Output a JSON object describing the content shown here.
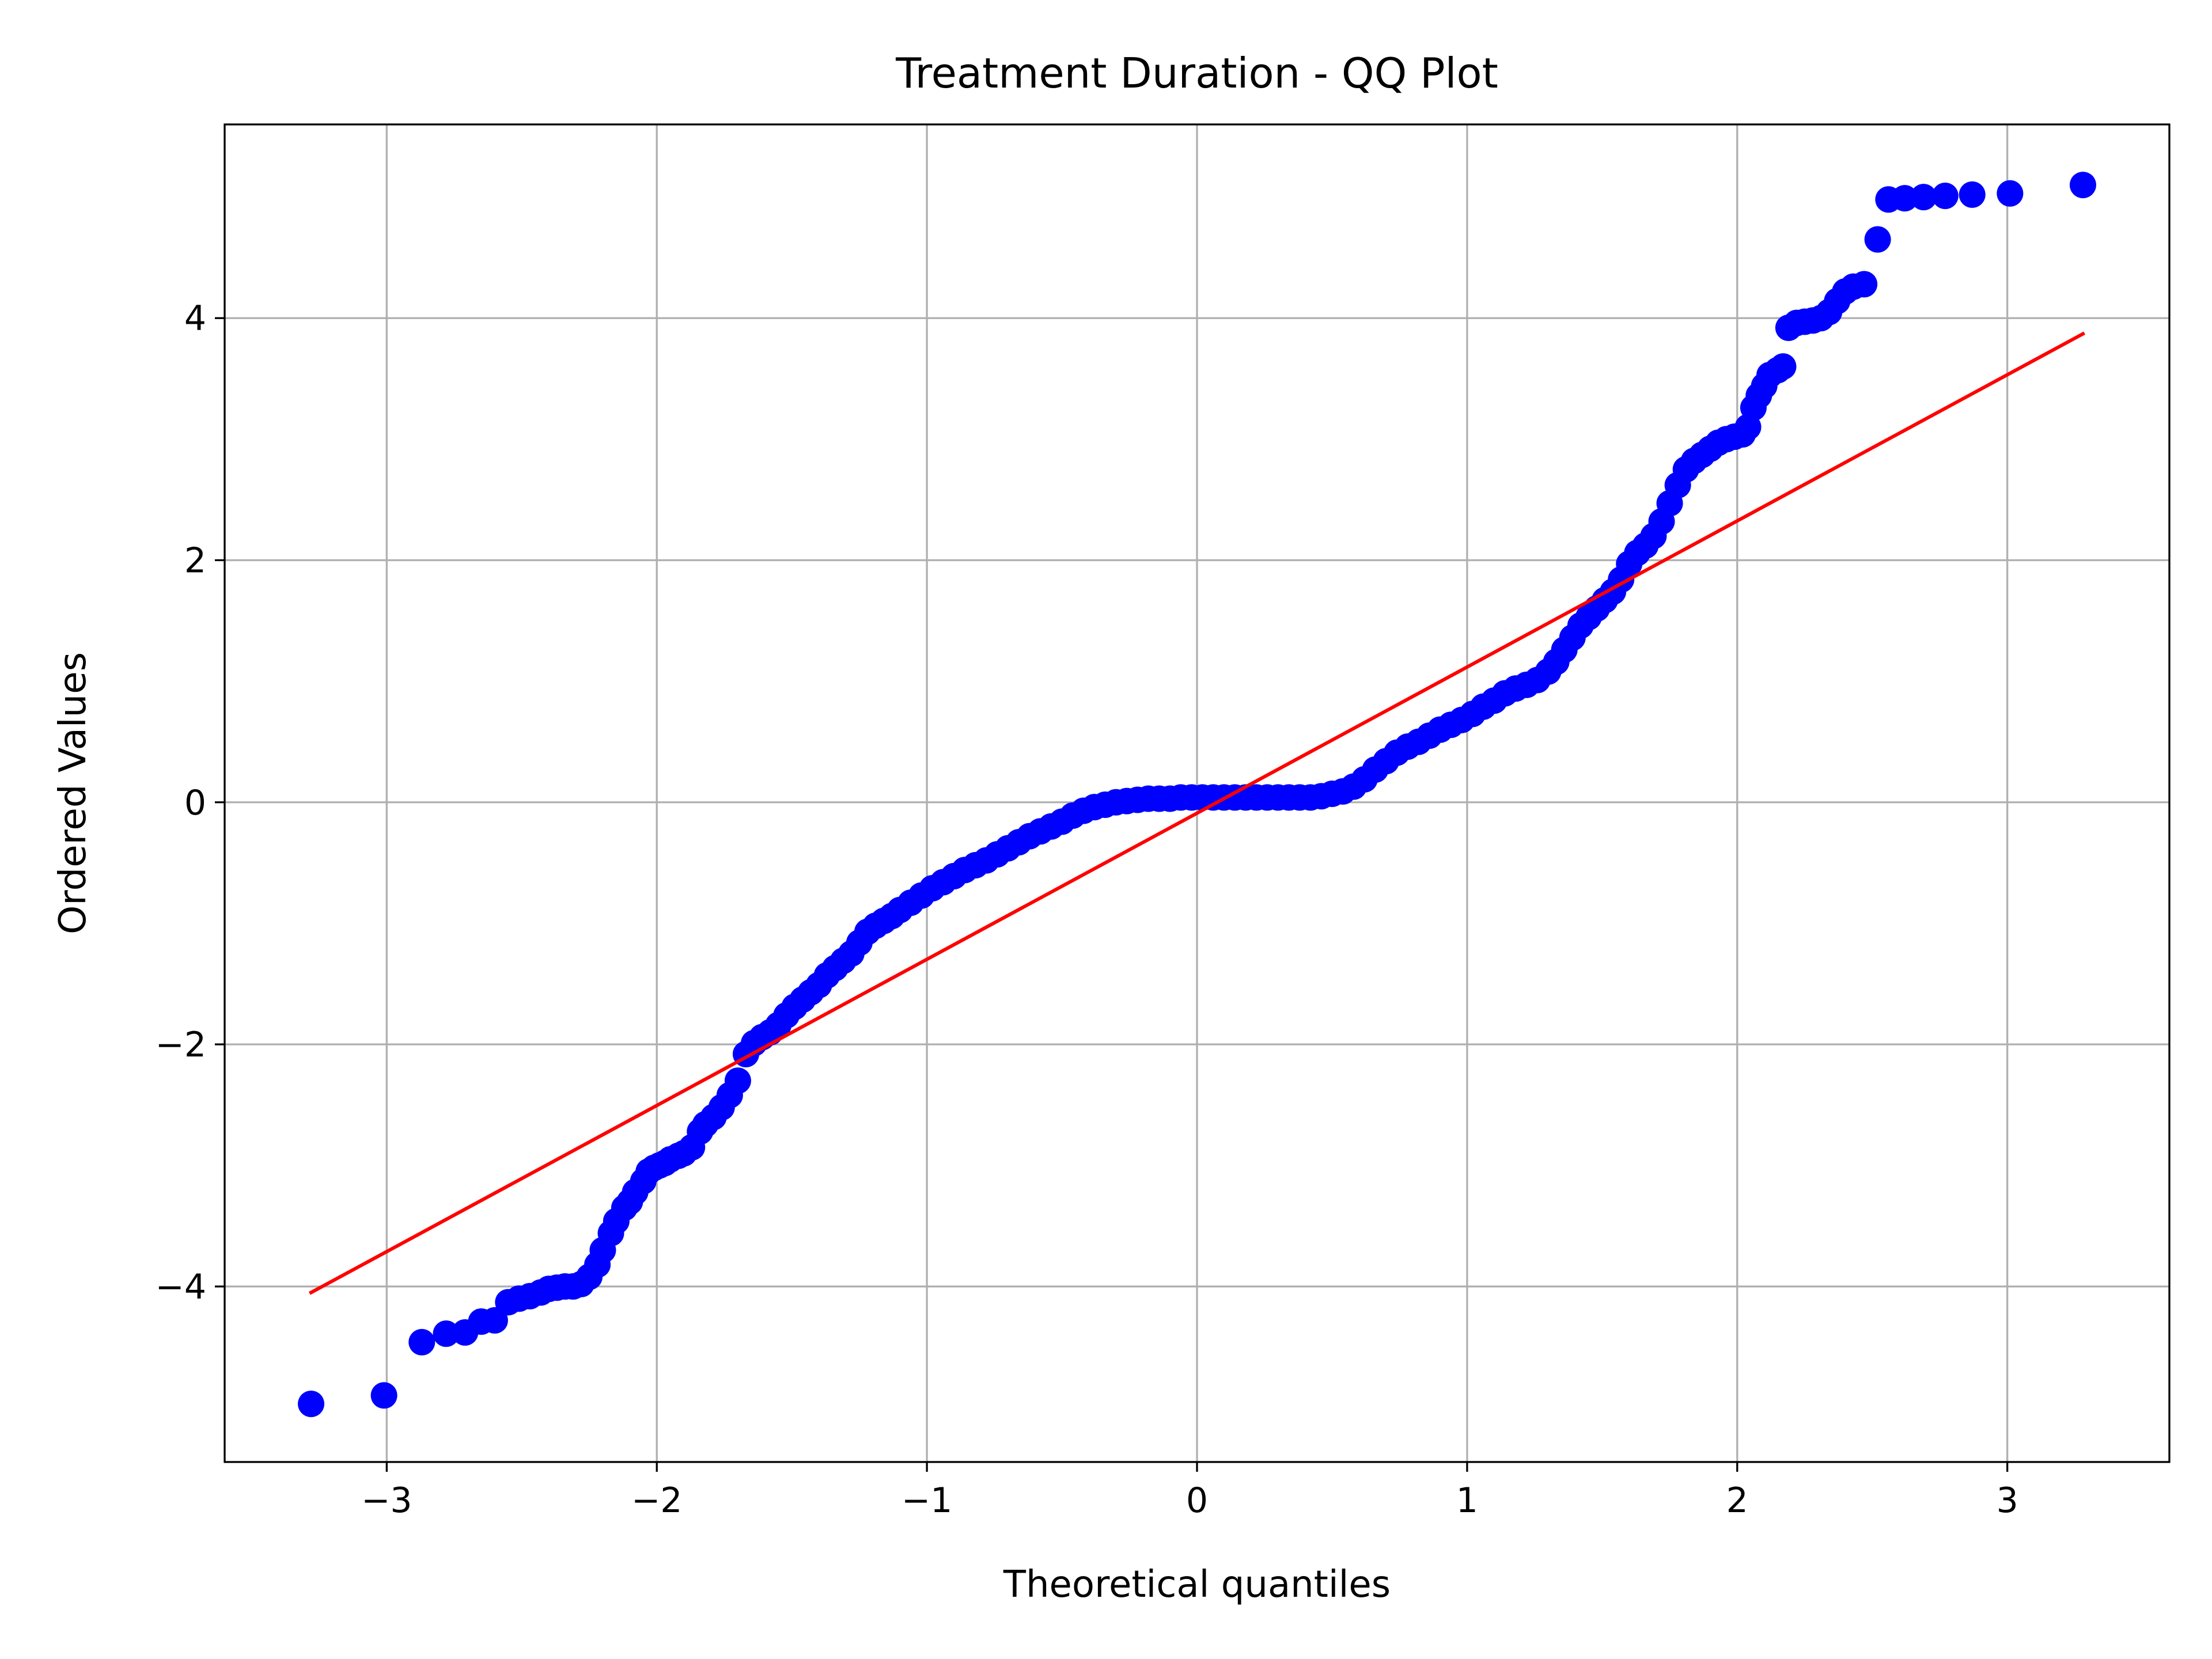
{
  "chart_data": {
    "type": "scatter",
    "title": "Treatment Duration - QQ Plot",
    "xlabel": "Theoretical quantiles",
    "ylabel": "Ordered Values",
    "xlim": [
      -3.6,
      3.6
    ],
    "ylim": [
      -5.45,
      5.6
    ],
    "xticks": [
      -3,
      -2,
      -1,
      0,
      1,
      2,
      3
    ],
    "xtick_labels": [
      "−3",
      "−2",
      "−1",
      "0",
      "1",
      "2",
      "3"
    ],
    "yticks": [
      -4,
      -2,
      0,
      2,
      4
    ],
    "ytick_labels": [
      "−4",
      "−2",
      "0",
      "2",
      "4"
    ],
    "grid": true,
    "series": [
      {
        "kind": "points",
        "color": "#0000ff",
        "x": [
          -3.28,
          -3.01,
          -2.87,
          -2.78,
          -2.71,
          -2.65,
          -2.6,
          -2.55,
          -2.51,
          -2.47,
          -2.43,
          -2.4,
          -2.37,
          -2.34,
          -2.31,
          -2.28,
          -2.25,
          -2.22,
          -2.2,
          -2.17,
          -2.15,
          -2.12,
          -2.1,
          -2.08,
          -2.05,
          -2.03,
          -2.01,
          -1.99,
          -1.97,
          -1.95,
          -1.92,
          -1.9,
          -1.87,
          -1.84,
          -1.82,
          -1.79,
          -1.76,
          -1.73,
          -1.7,
          -1.67,
          -1.64,
          -1.61,
          -1.58,
          -1.55,
          -1.52,
          -1.49,
          -1.46,
          -1.43,
          -1.4,
          -1.37,
          -1.34,
          -1.31,
          -1.28,
          -1.25,
          -1.22,
          -1.19,
          -1.16,
          -1.13,
          -1.1,
          -1.06,
          -1.02,
          -0.98,
          -0.94,
          -0.9,
          -0.86,
          -0.82,
          -0.78,
          -0.74,
          -0.7,
          -0.66,
          -0.62,
          -0.58,
          -0.54,
          -0.5,
          -0.46,
          -0.42,
          -0.38,
          -0.34,
          -0.3,
          -0.26,
          -0.22,
          -0.18,
          -0.14,
          -0.1,
          -0.06,
          -0.02,
          0.02,
          0.06,
          0.1,
          0.14,
          0.18,
          0.22,
          0.26,
          0.3,
          0.34,
          0.38,
          0.42,
          0.46,
          0.5,
          0.54,
          0.58,
          0.62,
          0.66,
          0.7,
          0.74,
          0.78,
          0.82,
          0.86,
          0.9,
          0.94,
          0.98,
          1.02,
          1.06,
          1.1,
          1.14,
          1.18,
          1.22,
          1.26,
          1.3,
          1.33,
          1.36,
          1.39,
          1.42,
          1.45,
          1.48,
          1.51,
          1.54,
          1.57,
          1.6,
          1.63,
          1.66,
          1.69,
          1.72,
          1.75,
          1.78,
          1.81,
          1.84,
          1.87,
          1.9,
          1.93,
          1.96,
          1.99,
          2.02,
          2.04,
          2.06,
          2.08,
          2.1,
          2.12,
          2.15,
          2.17,
          2.19,
          2.22,
          2.25,
          2.28,
          2.31,
          2.34,
          2.37,
          2.4,
          2.43,
          2.47,
          2.52,
          2.56,
          2.62,
          2.69,
          2.77,
          2.87,
          3.01,
          3.28
        ],
        "y": [
          -4.97,
          -4.9,
          -4.46,
          -4.39,
          -4.38,
          -4.29,
          -4.28,
          -4.13,
          -4.1,
          -4.08,
          -4.05,
          -4.02,
          -4.01,
          -4.0,
          -4.0,
          -3.98,
          -3.92,
          -3.82,
          -3.7,
          -3.56,
          -3.46,
          -3.35,
          -3.3,
          -3.22,
          -3.13,
          -3.05,
          -3.02,
          -3.0,
          -2.98,
          -2.95,
          -2.92,
          -2.9,
          -2.85,
          -2.72,
          -2.66,
          -2.6,
          -2.52,
          -2.42,
          -2.3,
          -2.08,
          -1.99,
          -1.94,
          -1.9,
          -1.84,
          -1.76,
          -1.69,
          -1.63,
          -1.57,
          -1.51,
          -1.43,
          -1.37,
          -1.31,
          -1.25,
          -1.16,
          -1.07,
          -1.02,
          -0.98,
          -0.94,
          -0.89,
          -0.83,
          -0.77,
          -0.71,
          -0.66,
          -0.61,
          -0.56,
          -0.52,
          -0.48,
          -0.43,
          -0.38,
          -0.33,
          -0.28,
          -0.24,
          -0.2,
          -0.16,
          -0.11,
          -0.07,
          -0.04,
          -0.02,
          0.0,
          0.01,
          0.02,
          0.03,
          0.03,
          0.03,
          0.04,
          0.04,
          0.04,
          0.04,
          0.04,
          0.04,
          0.04,
          0.04,
          0.04,
          0.04,
          0.04,
          0.04,
          0.04,
          0.05,
          0.07,
          0.09,
          0.13,
          0.19,
          0.27,
          0.34,
          0.41,
          0.46,
          0.5,
          0.55,
          0.6,
          0.64,
          0.68,
          0.73,
          0.79,
          0.84,
          0.9,
          0.94,
          0.97,
          1.01,
          1.08,
          1.16,
          1.26,
          1.36,
          1.46,
          1.53,
          1.6,
          1.67,
          1.74,
          1.84,
          1.97,
          2.06,
          2.12,
          2.2,
          2.32,
          2.47,
          2.62,
          2.75,
          2.82,
          2.87,
          2.92,
          2.97,
          3.0,
          3.02,
          3.04,
          3.1,
          3.26,
          3.36,
          3.44,
          3.53,
          3.57,
          3.6,
          3.92,
          3.96,
          3.97,
          3.98,
          4.0,
          4.05,
          4.14,
          4.22,
          4.26,
          4.28,
          4.65,
          4.98,
          4.99,
          5.0,
          5.01,
          5.02,
          5.03,
          5.1
        ]
      },
      {
        "kind": "line",
        "color": "#ff0000",
        "x": [
          -3.28,
          3.28
        ],
        "y": [
          -4.05,
          3.87
        ]
      }
    ]
  }
}
